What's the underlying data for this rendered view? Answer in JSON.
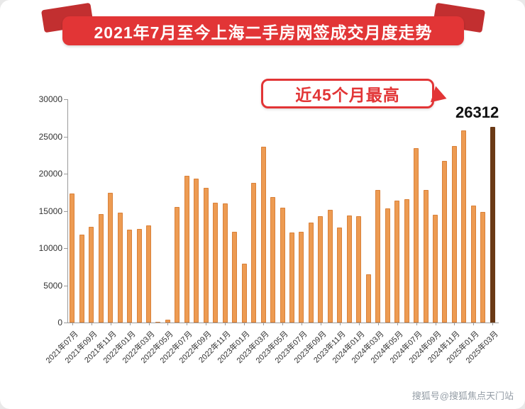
{
  "banner": {
    "title": "2021年7月至今上海二手房网签成交月度走势",
    "bg_color": "#e23536"
  },
  "annotation": {
    "text": "近45个月最高",
    "value_label": "26312",
    "color": "#e23536"
  },
  "watermark": "搜狐号@搜狐焦点天门站",
  "chart_data": {
    "type": "bar",
    "title": "2021年7月至今上海二手房网签成交月度走势",
    "xlabel": "",
    "ylabel": "",
    "ylim": [
      0,
      30000
    ],
    "yticks": [
      0,
      5000,
      10000,
      15000,
      20000,
      25000,
      30000
    ],
    "grid": false,
    "legend": false,
    "x_label_every": 2,
    "bar_color": "#ed9b52",
    "bar_border_color": "#d9813a",
    "highlight_index": 44,
    "highlight_color": "#6b3a16",
    "categories": [
      "2021年07月",
      "2021年08月",
      "2021年09月",
      "2021年10月",
      "2021年11月",
      "2021年12月",
      "2022年01月",
      "2022年02月",
      "2022年03月",
      "2022年04月",
      "2022年05月",
      "2022年06月",
      "2022年07月",
      "2022年08月",
      "2022年09月",
      "2022年10月",
      "2022年11月",
      "2022年12月",
      "2023年01月",
      "2023年02月",
      "2023年03月",
      "2023年04月",
      "2023年05月",
      "2023年06月",
      "2023年07月",
      "2023年08月",
      "2023年09月",
      "2023年10月",
      "2023年11月",
      "2023年12月",
      "2024年01月",
      "2024年02月",
      "2024年03月",
      "2024年04月",
      "2024年05月",
      "2024年06月",
      "2024年07月",
      "2024年08月",
      "2024年09月",
      "2024年10月",
      "2024年11月",
      "2024年12月",
      "2025年01月",
      "2025年02月",
      "2025年03月"
    ],
    "values": [
      17300,
      11800,
      12900,
      14600,
      17400,
      14800,
      12500,
      12600,
      13000,
      100,
      400,
      15500,
      19700,
      19300,
      18100,
      16100,
      16000,
      12200,
      7900,
      18800,
      23600,
      16900,
      15400,
      12100,
      12200,
      13400,
      14300,
      15100,
      12800,
      14400,
      14300,
      6500,
      17800,
      15300,
      16400,
      16600,
      23400,
      17800,
      14500,
      21700,
      23700,
      25800,
      15700,
      14900,
      26312
    ],
    "annotated_point": {
      "category": "2025年03月",
      "value": 26312,
      "label": "近45个月最高"
    }
  }
}
